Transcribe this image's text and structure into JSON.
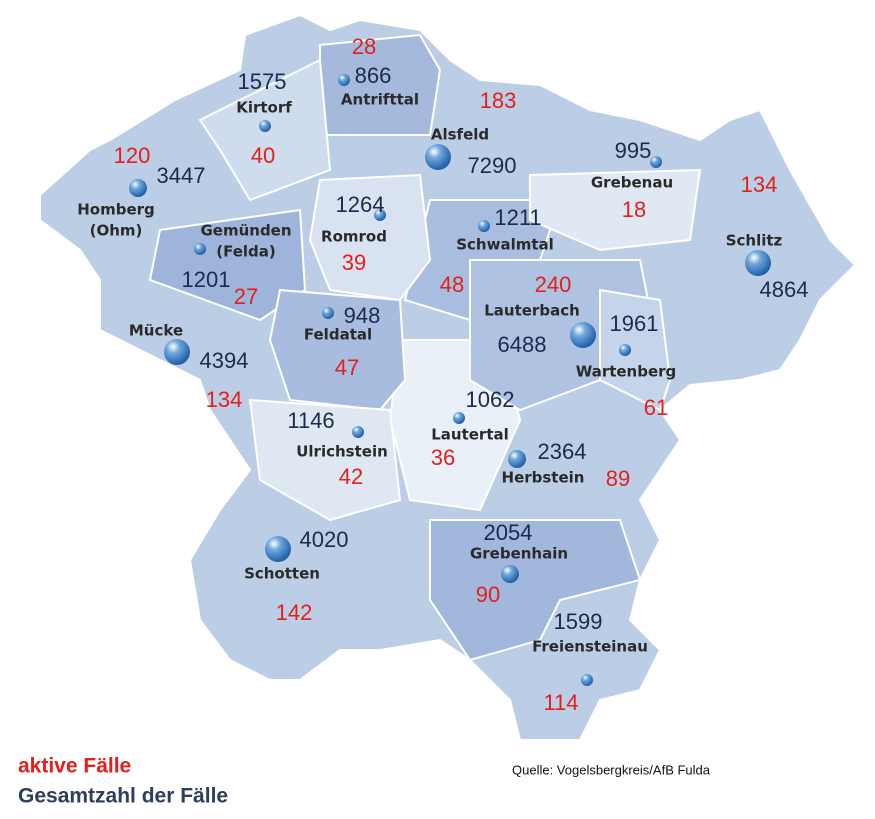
{
  "legend": {
    "active": "aktive Fälle",
    "total": "Gesamtzahl der Fälle"
  },
  "source": "Quelle: Vogelsbergkreis/AfB Fulda",
  "municipalities": [
    {
      "name": [
        "Antrifttal"
      ],
      "total": 866,
      "active": 28
    },
    {
      "name": [
        "Kirtorf"
      ],
      "total": 1575,
      "active": 40
    },
    {
      "name": [
        "Alsfeld"
      ],
      "total": 7290,
      "active": 183
    },
    {
      "name": [
        "Homberg",
        "(Ohm)"
      ],
      "total": 3447,
      "active": 120
    },
    {
      "name": [
        "Gemünden",
        "(Felda)"
      ],
      "total": 1201,
      "active": 27
    },
    {
      "name": [
        "Romrod"
      ],
      "total": 1264,
      "active": 39
    },
    {
      "name": [
        "Schwalmtal"
      ],
      "total": 1211,
      "active": 48
    },
    {
      "name": [
        "Grebenau"
      ],
      "total": 995,
      "active": 18
    },
    {
      "name": [
        "Schlitz"
      ],
      "total": 4864,
      "active": 134
    },
    {
      "name": [
        "Mücke"
      ],
      "total": 4394,
      "active": 134
    },
    {
      "name": [
        "Feldatal"
      ],
      "total": 948,
      "active": 47
    },
    {
      "name": [
        "Lauterbach"
      ],
      "total": 6488,
      "active": 240
    },
    {
      "name": [
        "Wartenberg"
      ],
      "total": 1961,
      "active": 61
    },
    {
      "name": [
        "Ulrichstein"
      ],
      "total": 1146,
      "active": 42
    },
    {
      "name": [
        "Lautertal"
      ],
      "total": 1062,
      "active": 36
    },
    {
      "name": [
        "Herbstein"
      ],
      "total": 2364,
      "active": 89
    },
    {
      "name": [
        "Schotten"
      ],
      "total": 4020,
      "active": 142
    },
    {
      "name": [
        "Grebenhain"
      ],
      "total": 2054,
      "active": 90
    },
    {
      "name": [
        "Freiensteinau"
      ],
      "total": 1599,
      "active": 114
    }
  ]
}
